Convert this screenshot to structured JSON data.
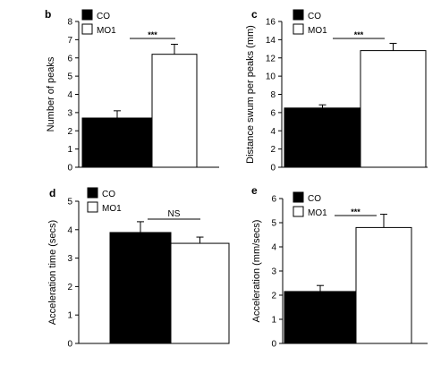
{
  "chart_data": [
    {
      "panel": "b",
      "type": "bar",
      "categories": [
        "CO",
        "MO1"
      ],
      "values": [
        2.7,
        6.2
      ],
      "errors": [
        0.4,
        0.55
      ],
      "ylabel": "Number of peaks",
      "ylim": [
        0,
        8
      ],
      "yticks": [
        "0",
        "1",
        "2",
        "3",
        "4",
        "5",
        "6",
        "7",
        "8"
      ],
      "significance": "***",
      "legend": [
        "CO",
        "MO1"
      ],
      "legend_position": "top-left",
      "colors": [
        "#000000",
        "#ffffff"
      ],
      "grid": false
    },
    {
      "panel": "c",
      "type": "bar",
      "categories": [
        "CO",
        "MO1"
      ],
      "values": [
        6.5,
        12.8
      ],
      "errors": [
        0.35,
        0.8
      ],
      "ylabel": "Distance swum per peaks (mm)",
      "ylim": [
        0,
        16
      ],
      "yticks": [
        "0",
        "2",
        "4",
        "6",
        "8",
        "10",
        "12",
        "14",
        "16"
      ],
      "significance": "***",
      "legend": [
        "CO",
        "MO1"
      ],
      "legend_position": "top-left",
      "colors": [
        "#000000",
        "#ffffff"
      ],
      "grid": false
    },
    {
      "panel": "d",
      "type": "bar",
      "categories": [
        "CO",
        "MO1"
      ],
      "values": [
        3.9,
        3.52
      ],
      "errors": [
        0.38,
        0.22
      ],
      "ylabel": "Acceleration time (secs)",
      "ylim": [
        0,
        5
      ],
      "yticks": [
        "0",
        "1",
        "2",
        "3",
        "4",
        "5"
      ],
      "significance": "NS",
      "legend": [
        "CO",
        "MO1"
      ],
      "legend_position": "top-left",
      "colors": [
        "#000000",
        "#ffffff"
      ],
      "grid": false
    },
    {
      "panel": "e",
      "type": "bar",
      "categories": [
        "CO",
        "MO1"
      ],
      "values": [
        2.15,
        4.8
      ],
      "errors": [
        0.25,
        0.55
      ],
      "ylabel": "Acceleration (mm/secs)",
      "ylim": [
        0,
        6
      ],
      "yticks": [
        "0",
        "1",
        "2",
        "3",
        "4",
        "5",
        "6"
      ],
      "significance": "***",
      "legend": [
        "CO",
        "MO1"
      ],
      "legend_position": "top-left",
      "colors": [
        "#000000",
        "#ffffff"
      ],
      "grid": false
    }
  ]
}
